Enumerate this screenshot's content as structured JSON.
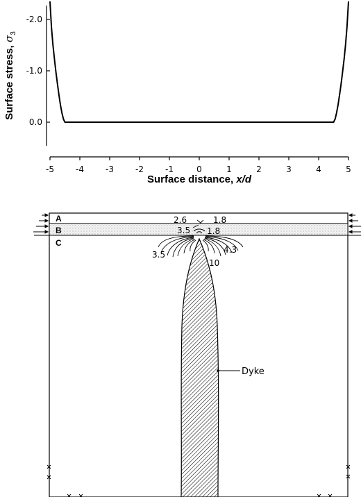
{
  "chart_data": {
    "type": "line",
    "title": "",
    "xlabel": "Surface distance, ",
    "xlabel_italic": "x/d",
    "ylabel": "Surface stress, ",
    "ylabel_symbol": "σ",
    "ylabel_subscript": "3",
    "xlim": [
      -5,
      5
    ],
    "ylim": [
      0.75,
      -2.4
    ],
    "y_axis_inverted": true,
    "grid": false,
    "x_ticks": [
      "-5",
      "-4",
      "-3",
      "-2",
      "-1",
      "0",
      "1",
      "2",
      "3",
      "4",
      "5"
    ],
    "y_ticks": [
      "-2.0",
      "-1.0",
      "0.0"
    ],
    "series": [
      {
        "x": [
          -5.0,
          -4.95,
          -4.9,
          -4.85,
          -4.8,
          -4.75,
          -4.7,
          -4.65,
          -4.6,
          -4.55,
          -4.5,
          -4.0,
          -3.0,
          -2.0,
          -1.0,
          0.0,
          1.0,
          2.0,
          3.0,
          4.0,
          4.5,
          4.55,
          4.6,
          4.65,
          4.7,
          4.75,
          4.8,
          4.85,
          4.9,
          4.95,
          5.0
        ],
        "y": [
          -2.35,
          -1.85,
          -1.5,
          -1.22,
          -0.97,
          -0.74,
          -0.53,
          -0.34,
          -0.18,
          -0.06,
          0.0,
          0.0,
          0.0,
          0.0,
          0.0,
          0.0,
          0.0,
          0.0,
          0.0,
          0.0,
          0.0,
          -0.06,
          -0.18,
          -0.34,
          -0.53,
          -0.74,
          -0.97,
          -1.22,
          -1.5,
          -1.85,
          -2.35
        ]
      }
    ]
  },
  "diagram": {
    "layers": [
      "A",
      "B",
      "C"
    ],
    "contour_labels": [
      "2.6",
      "1.8",
      "3.5",
      "1.8",
      "3.5",
      "4.3",
      "10"
    ],
    "dyke_label": "Dyke"
  }
}
